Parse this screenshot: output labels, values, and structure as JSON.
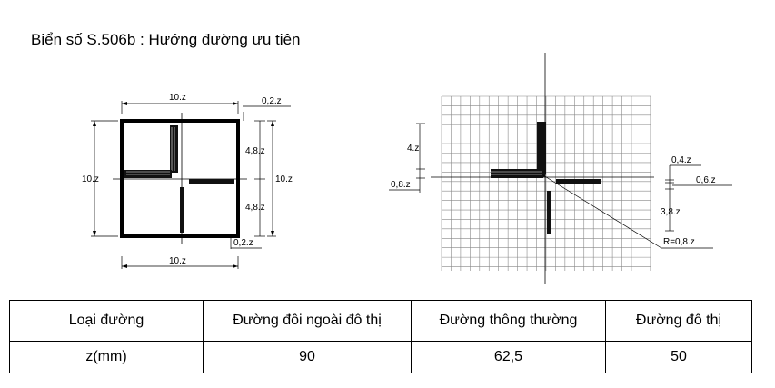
{
  "title": "Biển số S.506b : Hướng đường ưu tiên",
  "left_figure": {
    "top_width": "10.z",
    "top_gap": "0,2.z",
    "upper_height": "4,8.z",
    "right_height": "10.z",
    "lower_height": "4,8.z",
    "left_height": "10.z",
    "bottom_gap": "0,2.z",
    "bottom_width": "10.z"
  },
  "right_figure": {
    "arm_spacing": "4.z",
    "arm_width_left": "0,8.z",
    "gap_small": "0,4.z",
    "arm_width_right": "0,6.z",
    "arm_height": "3,8.z",
    "radius": "R=0,8.z"
  },
  "table": {
    "headers": [
      "Loại đường",
      "Đường đôi ngoài đô thị",
      "Đường thông thường",
      "Đường đô thị"
    ],
    "row": [
      "z(mm)",
      "90",
      "62,5",
      "50"
    ]
  }
}
